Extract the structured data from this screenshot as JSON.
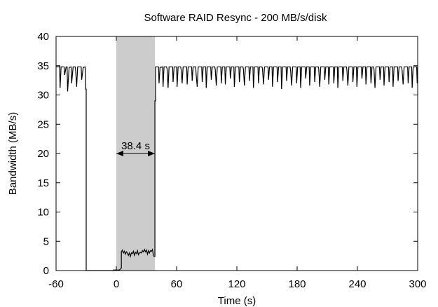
{
  "chart_data": {
    "type": "line",
    "title": "Software RAID Resync - 200 MB/s/disk",
    "xlabel": "Time (s)",
    "ylabel": "Bandwidth (MB/s)",
    "xlim": [
      -60,
      300
    ],
    "ylim": [
      0,
      40
    ],
    "xticks": [
      -60,
      0,
      60,
      120,
      180,
      240,
      300
    ],
    "yticks": [
      0,
      5,
      10,
      15,
      20,
      25,
      30,
      35,
      40
    ],
    "grid": false,
    "colors": {
      "line": "#000000",
      "shade": "#cccccc"
    },
    "shaded_interval": {
      "x_start": 0,
      "x_end": 38.4
    },
    "annotation": {
      "text": "38.4 s",
      "x_start": 0,
      "x_end": 38.4,
      "y": 20
    },
    "series": [
      {
        "values": [
          [
            -60,
            34.8
          ],
          [
            -57,
            34.8
          ],
          [
            -56.5,
            34.9
          ],
          [
            -56,
            31.2
          ],
          [
            -55,
            34.8
          ],
          [
            -52,
            34.8
          ],
          [
            -51.5,
            33.4
          ],
          [
            -50,
            34.8
          ],
          [
            -49,
            34.8
          ],
          [
            -48.5,
            30.6
          ],
          [
            -47,
            34.7
          ],
          [
            -45,
            34.8
          ],
          [
            -44.5,
            32.0
          ],
          [
            -43,
            34.8
          ],
          [
            -41,
            34.8
          ],
          [
            -40.5,
            34.2
          ],
          [
            -39.5,
            31.4
          ],
          [
            -38.5,
            34.8
          ],
          [
            -35,
            34.8
          ],
          [
            -34.5,
            32.6
          ],
          [
            -33,
            34.7
          ],
          [
            -31,
            34.8
          ],
          [
            -30.5,
            31.0
          ],
          [
            -30,
            31.0
          ],
          [
            -30,
            0
          ],
          [
            -3,
            0
          ],
          [
            -3,
            0.1
          ],
          [
            0,
            0.1
          ],
          [
            3,
            0.1
          ],
          [
            5,
            0.4
          ],
          [
            5,
            3.2
          ],
          [
            6,
            3.5
          ],
          [
            7,
            3.0
          ],
          [
            8,
            3.3
          ],
          [
            9,
            2.8
          ],
          [
            10,
            3.2
          ],
          [
            11,
            3.0
          ],
          [
            12,
            2.6
          ],
          [
            13,
            3.0
          ],
          [
            14,
            2.4
          ],
          [
            15,
            3.0
          ],
          [
            16,
            2.9
          ],
          [
            17,
            3.3
          ],
          [
            18,
            2.6
          ],
          [
            19,
            3.1
          ],
          [
            20,
            2.9
          ],
          [
            21,
            3.4
          ],
          [
            22,
            2.7
          ],
          [
            23,
            3.0
          ],
          [
            24,
            3.1
          ],
          [
            25,
            3.0
          ],
          [
            26,
            3.4
          ],
          [
            27,
            3.2
          ],
          [
            28,
            3.6
          ],
          [
            29,
            3.2
          ],
          [
            30,
            3.5
          ],
          [
            31,
            2.8
          ],
          [
            32,
            3.4
          ],
          [
            33,
            3.0
          ],
          [
            34,
            3.4
          ],
          [
            35,
            3.3
          ],
          [
            36,
            3.6
          ],
          [
            37,
            2.5
          ],
          [
            38,
            2.4
          ],
          [
            38.4,
            2.4
          ],
          [
            38.4,
            29.0
          ],
          [
            39,
            29.0
          ],
          [
            39,
            34.8
          ],
          [
            42,
            34.8
          ],
          [
            42.5,
            32.0
          ],
          [
            43.5,
            34.7
          ],
          [
            46,
            34.8
          ],
          [
            46.5,
            31.4
          ],
          [
            47.5,
            34.8
          ],
          [
            50,
            34.8
          ],
          [
            50.5,
            34.5
          ],
          [
            51.5,
            31.2
          ],
          [
            52.5,
            34.8
          ],
          [
            56,
            34.8
          ],
          [
            56.5,
            32.2
          ],
          [
            57.5,
            34.8
          ],
          [
            60,
            34.8
          ],
          [
            60.5,
            31.4
          ],
          [
            61.5,
            34.8
          ],
          [
            64,
            34.8
          ],
          [
            64.5,
            34.4
          ],
          [
            65.5,
            32.0
          ],
          [
            66.5,
            34.8
          ],
          [
            70,
            34.8
          ],
          [
            70.5,
            31.8
          ],
          [
            71.5,
            34.8
          ],
          [
            75,
            34.8
          ],
          [
            75.5,
            32.4
          ],
          [
            76.5,
            34.8
          ],
          [
            79,
            34.8
          ],
          [
            79.5,
            33.4
          ],
          [
            80.5,
            31.4
          ],
          [
            81.5,
            34.8
          ],
          [
            85,
            34.8
          ],
          [
            85.5,
            32.2
          ],
          [
            86.5,
            34.8
          ],
          [
            89,
            34.8
          ],
          [
            89.5,
            31.2
          ],
          [
            90.5,
            34.8
          ],
          [
            94,
            34.8
          ],
          [
            94.5,
            32.6
          ],
          [
            95.5,
            34.8
          ],
          [
            98,
            34.8
          ],
          [
            98.5,
            34.3
          ],
          [
            99.5,
            31.6
          ],
          [
            100.5,
            34.8
          ],
          [
            104,
            34.8
          ],
          [
            104.5,
            32.0
          ],
          [
            105.5,
            34.8
          ],
          [
            108,
            34.8
          ],
          [
            108.5,
            31.8
          ],
          [
            109.5,
            34.8
          ],
          [
            113,
            34.8
          ],
          [
            113.5,
            32.8
          ],
          [
            114.5,
            34.8
          ],
          [
            117,
            34.8
          ],
          [
            117.5,
            31.4
          ],
          [
            118.5,
            34.8
          ],
          [
            122,
            34.8
          ],
          [
            122.5,
            32.2
          ],
          [
            123.5,
            34.8
          ],
          [
            126,
            34.8
          ],
          [
            126.5,
            34.4
          ],
          [
            127.5,
            31.6
          ],
          [
            128.5,
            34.8
          ],
          [
            132,
            34.8
          ],
          [
            132.5,
            32.4
          ],
          [
            133.5,
            34.8
          ],
          [
            136,
            34.8
          ],
          [
            136.5,
            31.2
          ],
          [
            137.5,
            34.8
          ],
          [
            141,
            34.8
          ],
          [
            141.5,
            32.0
          ],
          [
            142.5,
            34.8
          ],
          [
            145,
            34.8
          ],
          [
            145.5,
            34.5
          ],
          [
            146.5,
            31.8
          ],
          [
            147.5,
            34.8
          ],
          [
            151,
            34.8
          ],
          [
            151.5,
            32.6
          ],
          [
            152.5,
            34.8
          ],
          [
            155,
            34.8
          ],
          [
            155.5,
            31.4
          ],
          [
            156.5,
            34.8
          ],
          [
            160,
            34.8
          ],
          [
            160.5,
            32.2
          ],
          [
            161.5,
            34.8
          ],
          [
            164,
            34.8
          ],
          [
            164.5,
            31.0
          ],
          [
            165.5,
            34.8
          ],
          [
            169,
            34.8
          ],
          [
            169.5,
            32.4
          ],
          [
            170.5,
            34.8
          ],
          [
            173,
            34.8
          ],
          [
            173.5,
            34.2
          ],
          [
            174.5,
            31.6
          ],
          [
            175.5,
            34.8
          ],
          [
            179,
            34.8
          ],
          [
            179.5,
            32.0
          ],
          [
            180.5,
            34.8
          ],
          [
            183,
            34.8
          ],
          [
            183.5,
            31.2
          ],
          [
            184.5,
            34.8
          ],
          [
            188,
            34.8
          ],
          [
            188.5,
            32.8
          ],
          [
            189.5,
            34.8
          ],
          [
            192,
            34.8
          ],
          [
            192.5,
            31.6
          ],
          [
            193.5,
            34.8
          ],
          [
            197,
            34.8
          ],
          [
            197.5,
            32.2
          ],
          [
            198.5,
            34.8
          ],
          [
            201,
            34.8
          ],
          [
            201.5,
            34.4
          ],
          [
            202.5,
            31.4
          ],
          [
            203.5,
            34.8
          ],
          [
            207,
            34.8
          ],
          [
            207.5,
            32.6
          ],
          [
            208.5,
            34.8
          ],
          [
            211,
            34.8
          ],
          [
            211.5,
            31.8
          ],
          [
            212.5,
            34.8
          ],
          [
            216,
            34.8
          ],
          [
            216.5,
            32.0
          ],
          [
            217.5,
            34.8
          ],
          [
            220,
            34.8
          ],
          [
            220.5,
            31.2
          ],
          [
            221.5,
            34.8
          ],
          [
            225,
            34.8
          ],
          [
            225.5,
            32.4
          ],
          [
            226.5,
            34.8
          ],
          [
            229,
            34.8
          ],
          [
            229.5,
            34.3
          ],
          [
            230.5,
            31.6
          ],
          [
            231.5,
            34.8
          ],
          [
            235,
            34.8
          ],
          [
            235.5,
            32.2
          ],
          [
            236.5,
            34.8
          ],
          [
            239,
            34.8
          ],
          [
            239.5,
            31.4
          ],
          [
            240.5,
            34.8
          ],
          [
            244,
            34.8
          ],
          [
            244.5,
            32.8
          ],
          [
            245.5,
            34.8
          ],
          [
            248,
            34.8
          ],
          [
            248.5,
            31.8
          ],
          [
            249.5,
            34.8
          ],
          [
            253,
            34.8
          ],
          [
            253.5,
            32.0
          ],
          [
            254.5,
            34.8
          ],
          [
            256,
            34.8
          ],
          [
            256.5,
            34.4
          ],
          [
            257.5,
            31.2
          ],
          [
            258.5,
            34.8
          ],
          [
            262,
            34.8
          ],
          [
            262.5,
            32.6
          ],
          [
            263.5,
            34.8
          ],
          [
            266,
            34.8
          ],
          [
            266.5,
            31.6
          ],
          [
            267.5,
            34.8
          ],
          [
            271,
            34.8
          ],
          [
            271.5,
            32.2
          ],
          [
            272.5,
            34.8
          ],
          [
            275,
            34.8
          ],
          [
            275.5,
            31.4
          ],
          [
            276.5,
            34.8
          ],
          [
            280,
            34.8
          ],
          [
            280.5,
            32.4
          ],
          [
            281.5,
            34.8
          ],
          [
            284,
            34.8
          ],
          [
            284.5,
            34.2
          ],
          [
            285.5,
            31.8
          ],
          [
            286.5,
            34.8
          ],
          [
            290,
            34.8
          ],
          [
            290.5,
            32.0
          ],
          [
            291.5,
            34.8
          ],
          [
            294,
            34.8
          ],
          [
            294.5,
            31.2
          ],
          [
            295.5,
            34.8
          ],
          [
            299,
            34.8
          ],
          [
            299.5,
            32.0
          ],
          [
            300,
            34.8
          ]
        ]
      }
    ]
  }
}
